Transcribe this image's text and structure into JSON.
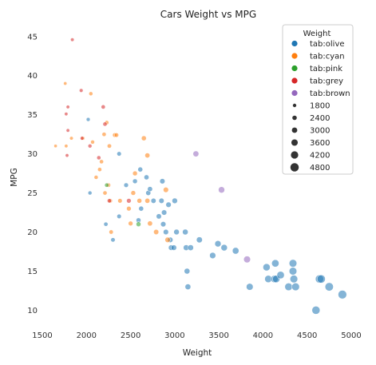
{
  "chart_data": {
    "type": "scatter",
    "title": "Cars Weight vs MPG",
    "xlabel": "Weight",
    "ylabel": "MPG",
    "xlim": [
      1500,
      5000
    ],
    "ylim": [
      8,
      46
    ],
    "x_ticks": [
      1500,
      2000,
      2500,
      3000,
      3500,
      4000,
      4500,
      5000
    ],
    "y_ticks": [
      10,
      15,
      20,
      25,
      30,
      35,
      40,
      45
    ],
    "grid": false,
    "legend_placement": "top-right",
    "legend_title": "Weight",
    "hue_entries": [
      {
        "name": "tab:olive",
        "color": "#1f77b4"
      },
      {
        "name": "tab:cyan",
        "color": "#ff7f0e"
      },
      {
        "name": "tab:pink",
        "color": "#2ca02c"
      },
      {
        "name": "tab:grey",
        "color": "#d62728"
      },
      {
        "name": "tab:brown",
        "color": "#9467bd"
      }
    ],
    "size_entries": [
      1800,
      2400,
      3000,
      3600,
      4200,
      4800
    ],
    "size_range": [
      1613,
      5140
    ],
    "series": [
      {
        "name": "tab:olive",
        "color": "#1f77b4",
        "points": [
          {
            "x": 2020,
            "y": 34.4
          },
          {
            "x": 2040,
            "y": 25
          },
          {
            "x": 2220,
            "y": 21
          },
          {
            "x": 2300,
            "y": 19
          },
          {
            "x": 2370,
            "y": 22
          },
          {
            "x": 2370,
            "y": 30
          },
          {
            "x": 2450,
            "y": 26
          },
          {
            "x": 2550,
            "y": 26.5
          },
          {
            "x": 2590,
            "y": 21.5
          },
          {
            "x": 2610,
            "y": 28
          },
          {
            "x": 2620,
            "y": 23
          },
          {
            "x": 2680,
            "y": 27
          },
          {
            "x": 2700,
            "y": 25
          },
          {
            "x": 2720,
            "y": 25.5
          },
          {
            "x": 2760,
            "y": 24
          },
          {
            "x": 2820,
            "y": 22
          },
          {
            "x": 2850,
            "y": 24
          },
          {
            "x": 2860,
            "y": 26.5
          },
          {
            "x": 2870,
            "y": 21
          },
          {
            "x": 2880,
            "y": 22.5
          },
          {
            "x": 2900,
            "y": 20
          },
          {
            "x": 2930,
            "y": 23.5
          },
          {
            "x": 2950,
            "y": 19
          },
          {
            "x": 2960,
            "y": 18
          },
          {
            "x": 2990,
            "y": 18
          },
          {
            "x": 3000,
            "y": 24
          },
          {
            "x": 3020,
            "y": 20
          },
          {
            "x": 3120,
            "y": 20
          },
          {
            "x": 3130,
            "y": 18
          },
          {
            "x": 3140,
            "y": 15
          },
          {
            "x": 3150,
            "y": 13
          },
          {
            "x": 3180,
            "y": 18
          },
          {
            "x": 3280,
            "y": 19
          },
          {
            "x": 3430,
            "y": 17
          },
          {
            "x": 3490,
            "y": 18.5
          },
          {
            "x": 3560,
            "y": 18
          },
          {
            "x": 3690,
            "y": 17.6
          },
          {
            "x": 3850,
            "y": 13
          },
          {
            "x": 4040,
            "y": 15.5
          },
          {
            "x": 4060,
            "y": 14
          },
          {
            "x": 4130,
            "y": 14
          },
          {
            "x": 4140,
            "y": 16
          },
          {
            "x": 4150,
            "y": 14
          },
          {
            "x": 4200,
            "y": 14.5
          },
          {
            "x": 4290,
            "y": 13
          },
          {
            "x": 4340,
            "y": 15
          },
          {
            "x": 4340,
            "y": 16
          },
          {
            "x": 4350,
            "y": 14
          },
          {
            "x": 4370,
            "y": 13
          },
          {
            "x": 4600,
            "y": 10
          },
          {
            "x": 4640,
            "y": 14
          },
          {
            "x": 4660,
            "y": 14
          },
          {
            "x": 4750,
            "y": 13
          },
          {
            "x": 4900,
            "y": 12
          }
        ]
      },
      {
        "name": "tab:cyan",
        "color": "#ff7f0e",
        "points": [
          {
            "x": 1650,
            "y": 31
          },
          {
            "x": 1760,
            "y": 39
          },
          {
            "x": 1770,
            "y": 31
          },
          {
            "x": 1830,
            "y": 32
          },
          {
            "x": 1960,
            "y": 32
          },
          {
            "x": 2050,
            "y": 37.7
          },
          {
            "x": 2070,
            "y": 31.5
          },
          {
            "x": 2110,
            "y": 27
          },
          {
            "x": 2150,
            "y": 28
          },
          {
            "x": 2170,
            "y": 29
          },
          {
            "x": 2200,
            "y": 32.5
          },
          {
            "x": 2210,
            "y": 25
          },
          {
            "x": 2230,
            "y": 34
          },
          {
            "x": 2250,
            "y": 26
          },
          {
            "x": 2260,
            "y": 31
          },
          {
            "x": 2270,
            "y": 24
          },
          {
            "x": 2280,
            "y": 20
          },
          {
            "x": 2320,
            "y": 32.4
          },
          {
            "x": 2340,
            "y": 32.4
          },
          {
            "x": 2380,
            "y": 24
          },
          {
            "x": 2480,
            "y": 23
          },
          {
            "x": 2500,
            "y": 21.1
          },
          {
            "x": 2530,
            "y": 25
          },
          {
            "x": 2550,
            "y": 27.5
          },
          {
            "x": 2600,
            "y": 24
          },
          {
            "x": 2650,
            "y": 32
          },
          {
            "x": 2690,
            "y": 29.8
          },
          {
            "x": 2690,
            "y": 24
          },
          {
            "x": 2720,
            "y": 21.1
          },
          {
            "x": 2790,
            "y": 20
          },
          {
            "x": 2900,
            "y": 25.4
          },
          {
            "x": 2920,
            "y": 19
          }
        ]
      },
      {
        "name": "tab:pink",
        "color": "#2ca02c",
        "points": [
          {
            "x": 2230,
            "y": 26
          },
          {
            "x": 2590,
            "y": 21
          }
        ]
      },
      {
        "name": "tab:grey",
        "color": "#d62728",
        "points": [
          {
            "x": 1840,
            "y": 44.6
          },
          {
            "x": 1770,
            "y": 35.1
          },
          {
            "x": 1790,
            "y": 36
          },
          {
            "x": 1790,
            "y": 33
          },
          {
            "x": 1780,
            "y": 29.8
          },
          {
            "x": 1940,
            "y": 38.1
          },
          {
            "x": 1950,
            "y": 32
          },
          {
            "x": 2040,
            "y": 31
          },
          {
            "x": 2140,
            "y": 29.5
          },
          {
            "x": 2190,
            "y": 36
          },
          {
            "x": 2210,
            "y": 33.8
          },
          {
            "x": 2260,
            "y": 24
          },
          {
            "x": 2480,
            "y": 24
          }
        ]
      },
      {
        "name": "tab:brown",
        "color": "#9467bd",
        "points": [
          {
            "x": 3240,
            "y": 30
          },
          {
            "x": 3530,
            "y": 25.4
          },
          {
            "x": 3820,
            "y": 16.5
          }
        ]
      }
    ]
  }
}
